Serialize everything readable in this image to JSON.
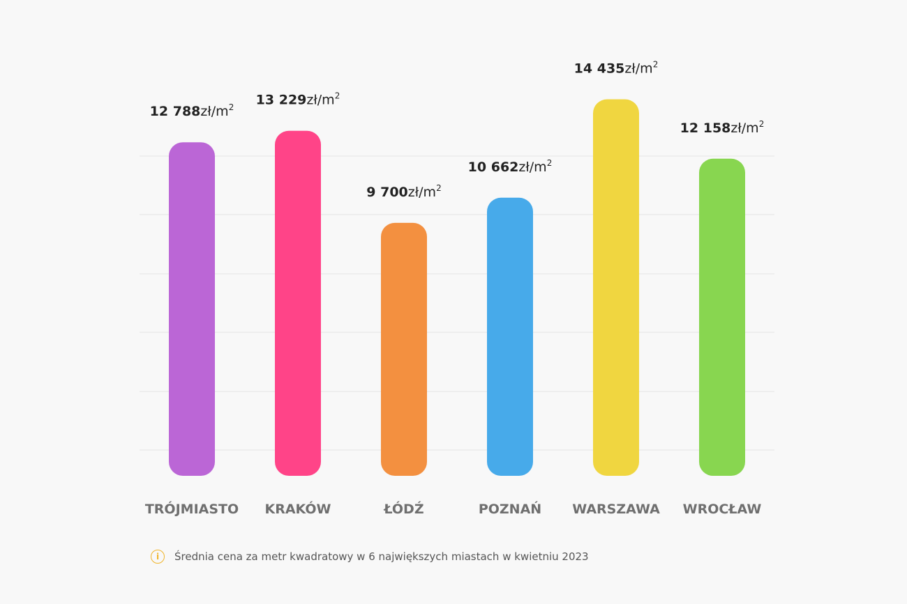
{
  "chart_data": {
    "type": "bar",
    "categories": [
      "TRÓJMIASTO",
      "KRAKÓW",
      "ŁÓDŹ",
      "POZNAŃ",
      "WARSZAWA",
      "WROCŁAW"
    ],
    "values": [
      12788,
      13229,
      9700,
      10662,
      14435,
      12158
    ],
    "value_labels": [
      "12 788",
      "13 229",
      "9 700",
      "10 662",
      "14 435",
      "12 158"
    ],
    "unit": "zł/m",
    "unit_superscript": "2",
    "colors": [
      "#bb66d6",
      "#ff4488",
      "#f39040",
      "#47aaea",
      "#f0d640",
      "#88d650"
    ],
    "ylim": [
      0,
      16800
    ],
    "grid": true,
    "title": "",
    "xlabel": "",
    "ylabel": ""
  },
  "footnote": {
    "icon": "info-icon",
    "icon_glyph": "i",
    "text": "Średnia cena za metr kwadratowy w 6 największych miastach w kwietniu 2023"
  }
}
